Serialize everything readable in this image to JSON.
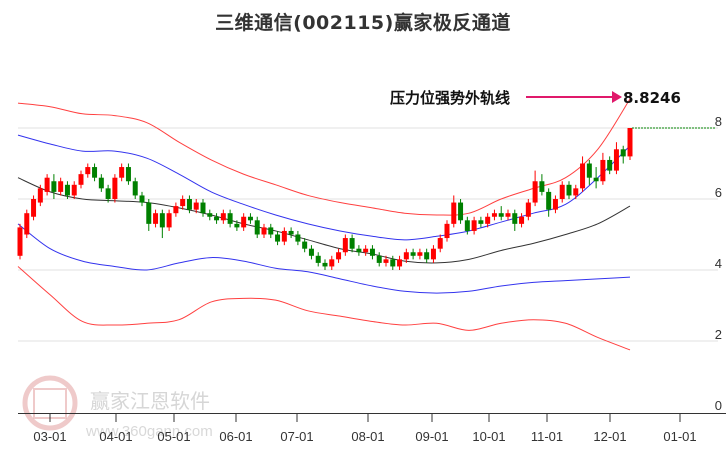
{
  "title": "三维通信(002115)赢家极反通道",
  "annotation": {
    "label": "压力位强势外轨线",
    "value": "8.8246",
    "arrow_color": "#e0196b"
  },
  "watermark": {
    "text": "赢家江恩软件",
    "url": "www.360gann.com",
    "seal_chars": [
      "江",
      "赢",
      "恩",
      "家"
    ]
  },
  "colors": {
    "up": "#ff0000",
    "down": "#008000",
    "outer_band": "#ff4040",
    "inner_band": "#3333ee",
    "mid_line": "#333333",
    "grid": "#e0e0e0",
    "axis": "#333333",
    "last_price_line": "#008000"
  },
  "chart_data": {
    "type": "candlestick",
    "title": "三维通信(002115)赢家极反通道",
    "xlabel": "",
    "ylabel": "",
    "ylim": [
      0,
      8.5
    ],
    "y_ticks": [
      0,
      2,
      4,
      6,
      8
    ],
    "x_ticks": [
      "03-01",
      "04-01",
      "05-01",
      "06-01",
      "07-01",
      "08-01",
      "09-01",
      "10-01",
      "11-01",
      "12-01",
      "01-01"
    ],
    "grid": true,
    "annotations": [
      {
        "text": "压力位强势外轨线",
        "value": 8.8246
      }
    ],
    "last_close": 8.0,
    "series": [
      {
        "name": "outer_upper",
        "color": "#ff4040",
        "x": [
          "03-01",
          "03-15",
          "04-01",
          "04-15",
          "05-01",
          "05-15",
          "06-01",
          "06-15",
          "07-01",
          "07-15",
          "08-01",
          "08-15",
          "09-01",
          "09-15",
          "10-01",
          "10-15",
          "11-01",
          "11-15",
          "12-01",
          "12-15"
        ],
        "values": [
          8.7,
          8.6,
          8.4,
          8.35,
          8.15,
          7.6,
          7.1,
          6.7,
          6.4,
          6.1,
          5.9,
          5.75,
          5.6,
          5.55,
          5.6,
          6.0,
          6.3,
          6.6,
          7.4,
          8.82
        ]
      },
      {
        "name": "inner_upper",
        "color": "#3333ee",
        "x": [
          "03-01",
          "03-15",
          "04-01",
          "04-15",
          "05-01",
          "05-15",
          "06-01",
          "06-15",
          "07-01",
          "07-15",
          "08-01",
          "08-15",
          "09-01",
          "09-15",
          "10-01",
          "10-15",
          "11-01",
          "11-15",
          "12-01",
          "12-15"
        ],
        "values": [
          7.8,
          7.55,
          7.35,
          7.35,
          7.15,
          6.7,
          6.2,
          5.85,
          5.55,
          5.3,
          5.1,
          4.95,
          4.85,
          4.95,
          5.1,
          5.35,
          5.6,
          5.85,
          6.6,
          7.5
        ]
      },
      {
        "name": "mid_line",
        "color": "#333333",
        "x": [
          "03-01",
          "03-15",
          "04-01",
          "04-15",
          "05-01",
          "05-15",
          "06-01",
          "06-15",
          "07-01",
          "07-15",
          "08-01",
          "08-15",
          "09-01",
          "09-15",
          "10-01",
          "10-15",
          "11-01",
          "11-15",
          "12-01",
          "12-15"
        ],
        "values": [
          6.6,
          6.2,
          6.0,
          5.95,
          5.9,
          5.75,
          5.55,
          5.3,
          5.1,
          4.85,
          4.6,
          4.45,
          4.25,
          4.2,
          4.3,
          4.55,
          4.75,
          5.0,
          5.3,
          5.8
        ]
      },
      {
        "name": "inner_lower",
        "color": "#3333ee",
        "x": [
          "03-01",
          "03-15",
          "04-01",
          "04-15",
          "05-01",
          "05-15",
          "06-01",
          "06-15",
          "07-01",
          "07-15",
          "08-01",
          "08-15",
          "09-01",
          "09-15",
          "10-01",
          "10-15",
          "11-01",
          "11-15",
          "12-01",
          "12-15"
        ],
        "values": [
          5.3,
          4.6,
          4.25,
          4.1,
          4.0,
          4.2,
          4.35,
          4.25,
          4.05,
          3.95,
          3.75,
          3.55,
          3.4,
          3.35,
          3.4,
          3.55,
          3.65,
          3.7,
          3.75,
          3.8
        ]
      },
      {
        "name": "outer_lower",
        "color": "#ff4040",
        "x": [
          "03-01",
          "03-15",
          "04-01",
          "04-15",
          "05-01",
          "05-15",
          "06-01",
          "06-15",
          "07-01",
          "07-15",
          "08-01",
          "08-15",
          "09-01",
          "09-15",
          "10-01",
          "10-15",
          "11-01",
          "11-15",
          "12-01",
          "12-15"
        ],
        "values": [
          4.1,
          3.3,
          2.55,
          2.45,
          2.5,
          2.6,
          3.1,
          3.2,
          3.15,
          2.85,
          2.7,
          2.55,
          2.45,
          2.5,
          2.3,
          2.5,
          2.6,
          2.5,
          2.1,
          1.75
        ]
      }
    ]
  },
  "candles": [
    [
      4.4,
      5.2,
      4.3,
      5.3
    ],
    [
      5.0,
      5.6,
      4.9,
      5.7
    ],
    [
      5.5,
      6.0,
      5.4,
      6.1
    ],
    [
      5.9,
      6.3,
      5.8,
      6.4
    ],
    [
      6.2,
      6.6,
      6.1,
      6.7
    ],
    [
      6.5,
      6.2,
      6.0,
      6.7
    ],
    [
      6.2,
      6.5,
      6.1,
      6.6
    ],
    [
      6.4,
      6.1,
      6.0,
      6.5
    ],
    [
      6.1,
      6.4,
      6.0,
      6.5
    ],
    [
      6.4,
      6.7,
      6.3,
      6.8
    ],
    [
      6.7,
      6.9,
      6.6,
      7.0
    ],
    [
      6.9,
      6.6,
      6.5,
      7.0
    ],
    [
      6.6,
      6.3,
      6.2,
      6.7
    ],
    [
      6.3,
      6.0,
      5.9,
      6.4
    ],
    [
      6.0,
      6.6,
      5.9,
      6.7
    ],
    [
      6.6,
      6.9,
      6.5,
      7.0
    ],
    [
      6.9,
      6.5,
      6.4,
      7.0
    ],
    [
      6.5,
      6.1,
      6.0,
      6.6
    ],
    [
      6.1,
      5.9,
      5.8,
      6.2
    ],
    [
      5.9,
      5.3,
      5.1,
      6.0
    ],
    [
      5.3,
      5.6,
      5.2,
      5.7
    ],
    [
      5.6,
      5.2,
      4.9,
      5.7
    ],
    [
      5.2,
      5.6,
      5.1,
      5.7
    ],
    [
      5.6,
      5.8,
      5.5,
      5.9
    ],
    [
      5.8,
      6.0,
      5.7,
      6.1
    ],
    [
      6.0,
      5.7,
      5.6,
      6.1
    ],
    [
      5.7,
      5.9,
      5.6,
      6.0
    ],
    [
      5.9,
      5.6,
      5.5,
      6.0
    ],
    [
      5.6,
      5.5,
      5.4,
      5.7
    ],
    [
      5.5,
      5.4,
      5.3,
      5.6
    ],
    [
      5.4,
      5.6,
      5.3,
      5.7
    ],
    [
      5.6,
      5.3,
      5.2,
      5.7
    ],
    [
      5.3,
      5.2,
      5.1,
      5.4
    ],
    [
      5.2,
      5.5,
      5.1,
      5.6
    ],
    [
      5.5,
      5.4,
      5.3,
      5.6
    ],
    [
      5.4,
      5.0,
      4.9,
      5.5
    ],
    [
      5.0,
      5.2,
      4.9,
      5.3
    ],
    [
      5.2,
      5.0,
      4.9,
      5.3
    ],
    [
      5.0,
      4.8,
      4.7,
      5.1
    ],
    [
      4.8,
      5.1,
      4.7,
      5.2
    ],
    [
      5.1,
      5.0,
      4.9,
      5.2
    ],
    [
      5.0,
      4.8,
      4.7,
      5.1
    ],
    [
      4.8,
      4.6,
      4.5,
      4.9
    ],
    [
      4.6,
      4.4,
      4.3,
      4.7
    ],
    [
      4.4,
      4.2,
      4.1,
      4.5
    ],
    [
      4.2,
      4.1,
      4.0,
      4.3
    ],
    [
      4.1,
      4.3,
      4.0,
      4.4
    ],
    [
      4.3,
      4.5,
      4.2,
      4.6
    ],
    [
      4.5,
      4.9,
      4.4,
      5.0
    ],
    [
      4.9,
      4.6,
      4.5,
      5.0
    ],
    [
      4.6,
      4.5,
      4.4,
      4.7
    ],
    [
      4.5,
      4.6,
      4.4,
      4.7
    ],
    [
      4.6,
      4.4,
      4.3,
      4.7
    ],
    [
      4.4,
      4.2,
      4.1,
      4.5
    ],
    [
      4.2,
      4.3,
      4.1,
      4.4
    ],
    [
      4.3,
      4.1,
      4.0,
      4.4
    ],
    [
      4.1,
      4.3,
      4.0,
      4.4
    ],
    [
      4.3,
      4.5,
      4.2,
      4.6
    ],
    [
      4.5,
      4.4,
      4.3,
      4.6
    ],
    [
      4.4,
      4.5,
      4.3,
      4.6
    ],
    [
      4.5,
      4.3,
      4.2,
      4.6
    ],
    [
      4.3,
      4.6,
      4.2,
      4.7
    ],
    [
      4.6,
      4.9,
      4.5,
      5.0
    ],
    [
      4.9,
      5.3,
      4.8,
      5.4
    ],
    [
      5.3,
      5.9,
      5.2,
      6.1
    ],
    [
      5.9,
      5.4,
      5.3,
      6.0
    ],
    [
      5.4,
      5.1,
      5.0,
      5.5
    ],
    [
      5.1,
      5.4,
      5.0,
      5.5
    ],
    [
      5.4,
      5.3,
      5.2,
      5.5
    ],
    [
      5.3,
      5.5,
      5.2,
      5.6
    ],
    [
      5.5,
      5.6,
      5.4,
      5.7
    ],
    [
      5.6,
      5.5,
      5.4,
      5.8
    ],
    [
      5.5,
      5.6,
      5.4,
      5.7
    ],
    [
      5.6,
      5.3,
      5.1,
      5.7
    ],
    [
      5.3,
      5.5,
      5.2,
      5.6
    ],
    [
      5.5,
      5.9,
      5.4,
      6.0
    ],
    [
      5.9,
      6.5,
      5.8,
      6.8
    ],
    [
      6.5,
      6.2,
      6.1,
      6.7
    ],
    [
      6.2,
      5.7,
      5.5,
      6.3
    ],
    [
      5.7,
      6.0,
      5.6,
      6.1
    ],
    [
      6.0,
      6.4,
      5.9,
      6.5
    ],
    [
      6.4,
      6.1,
      6.0,
      6.5
    ],
    [
      6.1,
      6.3,
      6.0,
      6.4
    ],
    [
      6.3,
      7.0,
      6.2,
      7.2
    ],
    [
      7.0,
      6.6,
      6.4,
      7.1
    ],
    [
      6.6,
      6.5,
      6.3,
      6.9
    ],
    [
      6.5,
      7.1,
      6.4,
      7.3
    ],
    [
      7.1,
      6.8,
      6.7,
      7.2
    ],
    [
      6.8,
      7.4,
      6.7,
      7.6
    ],
    [
      7.4,
      7.2,
      7.0,
      7.5
    ],
    [
      7.2,
      8.0,
      7.1,
      8.0
    ]
  ]
}
